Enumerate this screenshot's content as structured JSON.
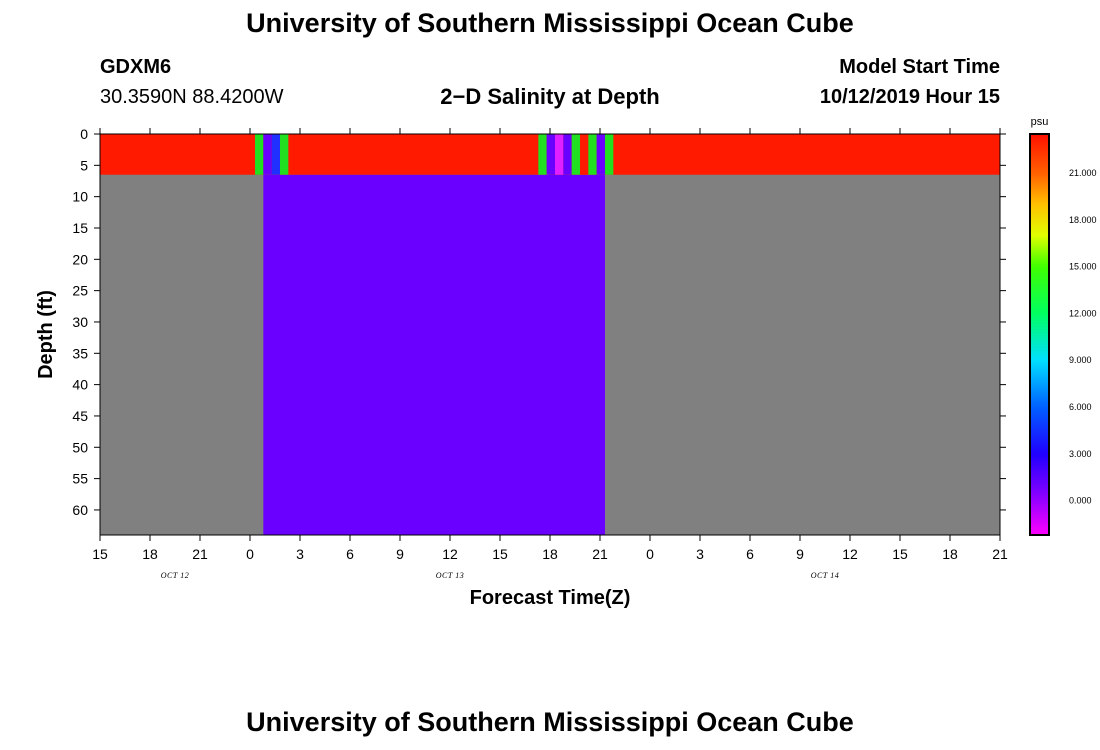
{
  "header": {
    "title": "University of Southern Mississippi Ocean Cube",
    "station_name": "GDXM6",
    "station_coords": "30.3590N 88.4200W",
    "plot_title": "2−D Salinity at Depth",
    "start_label": "Model Start Time",
    "start_value": "10/12/2019 Hour 15"
  },
  "footer": {
    "title": "University of Southern Mississippi Ocean Cube"
  },
  "colors": {
    "land_mask": "#808080",
    "high_salinity": "#ff1a00",
    "low_salinity": "#6a00ff",
    "green": "#20e020",
    "magenta": "#e020ff",
    "blue": "#2030ff"
  },
  "chart_data": {
    "type": "heatmap",
    "xlabel": "Forecast Time(Z)",
    "ylabel": "Depth (ft)",
    "x_range_hours": [
      0,
      54
    ],
    "x_ticks": [
      {
        "hour": 0,
        "label": "15"
      },
      {
        "hour": 3,
        "label": "18"
      },
      {
        "hour": 6,
        "label": "21"
      },
      {
        "hour": 9,
        "label": "0"
      },
      {
        "hour": 12,
        "label": "3"
      },
      {
        "hour": 15,
        "label": "6"
      },
      {
        "hour": 18,
        "label": "9"
      },
      {
        "hour": 21,
        "label": "12"
      },
      {
        "hour": 24,
        "label": "15"
      },
      {
        "hour": 27,
        "label": "18"
      },
      {
        "hour": 30,
        "label": "21"
      },
      {
        "hour": 33,
        "label": "0"
      },
      {
        "hour": 36,
        "label": "3"
      },
      {
        "hour": 39,
        "label": "6"
      },
      {
        "hour": 42,
        "label": "9"
      },
      {
        "hour": 45,
        "label": "12"
      },
      {
        "hour": 48,
        "label": "15"
      },
      {
        "hour": 51,
        "label": "18"
      },
      {
        "hour": 54,
        "label": "21"
      }
    ],
    "date_labels": [
      {
        "hour": 4.5,
        "label": "OCT 12"
      },
      {
        "hour": 21,
        "label": "OCT 13"
      },
      {
        "hour": 43.5,
        "label": "OCT 14"
      }
    ],
    "y_range_ft": [
      0,
      64
    ],
    "y_ticks": [
      0,
      5,
      10,
      15,
      20,
      25,
      30,
      35,
      40,
      45,
      50,
      55,
      60
    ],
    "cells": [
      {
        "x0": 0,
        "x1": 54,
        "y0": 0,
        "y1": 64,
        "color": "land_mask"
      },
      {
        "x0": 9.8,
        "x1": 30.3,
        "y0": 6.5,
        "y1": 64,
        "color": "low_salinity"
      },
      {
        "x0": 0,
        "x1": 54,
        "y0": 0,
        "y1": 6.5,
        "color": "high_salinity"
      },
      {
        "x0": 9.3,
        "x1": 9.8,
        "y0": 0,
        "y1": 6.5,
        "color": "green"
      },
      {
        "x0": 9.8,
        "x1": 10.3,
        "y0": 0,
        "y1": 6.5,
        "color": "low_salinity"
      },
      {
        "x0": 10.3,
        "x1": 10.8,
        "y0": 0,
        "y1": 6.5,
        "color": "blue"
      },
      {
        "x0": 10.8,
        "x1": 11.3,
        "y0": 0,
        "y1": 6.5,
        "color": "green"
      },
      {
        "x0": 26.3,
        "x1": 26.8,
        "y0": 0,
        "y1": 6.5,
        "color": "green"
      },
      {
        "x0": 26.8,
        "x1": 27.3,
        "y0": 0,
        "y1": 6.5,
        "color": "low_salinity"
      },
      {
        "x0": 27.3,
        "x1": 27.8,
        "y0": 0,
        "y1": 6.5,
        "color": "magenta"
      },
      {
        "x0": 27.8,
        "x1": 28.3,
        "y0": 0,
        "y1": 6.5,
        "color": "low_salinity"
      },
      {
        "x0": 28.3,
        "x1": 28.8,
        "y0": 0,
        "y1": 6.5,
        "color": "green"
      },
      {
        "x0": 28.8,
        "x1": 29.3,
        "y0": 0,
        "y1": 6.5,
        "color": "high_salinity"
      },
      {
        "x0": 29.3,
        "x1": 29.8,
        "y0": 0,
        "y1": 6.5,
        "color": "green"
      },
      {
        "x0": 29.8,
        "x1": 30.3,
        "y0": 0,
        "y1": 6.5,
        "color": "low_salinity"
      },
      {
        "x0": 30.3,
        "x1": 30.8,
        "y0": 0,
        "y1": 6.5,
        "color": "green"
      }
    ],
    "colorbar": {
      "unit": "psu",
      "range": [
        -2.2,
        23.5
      ],
      "ticks": [
        {
          "value": 0,
          "label": "0.000"
        },
        {
          "value": 3,
          "label": "3.000"
        },
        {
          "value": 6,
          "label": "6.000"
        },
        {
          "value": 9,
          "label": "9.000"
        },
        {
          "value": 12,
          "label": "12.000"
        },
        {
          "value": 15,
          "label": "15.000"
        },
        {
          "value": 18,
          "label": "18.000"
        },
        {
          "value": 21,
          "label": "21.000"
        }
      ],
      "stops": [
        {
          "value": -2.2,
          "color": "#ff00ff"
        },
        {
          "value": 0.5,
          "color": "#8000ff"
        },
        {
          "value": 3,
          "color": "#2000ff"
        },
        {
          "value": 6,
          "color": "#0060ff"
        },
        {
          "value": 9,
          "color": "#00e0ff"
        },
        {
          "value": 12,
          "color": "#00ff60"
        },
        {
          "value": 15,
          "color": "#40ff00"
        },
        {
          "value": 17,
          "color": "#e0ff00"
        },
        {
          "value": 19,
          "color": "#ffc000"
        },
        {
          "value": 21,
          "color": "#ff6000"
        },
        {
          "value": 23.5,
          "color": "#ff1000"
        }
      ]
    }
  }
}
